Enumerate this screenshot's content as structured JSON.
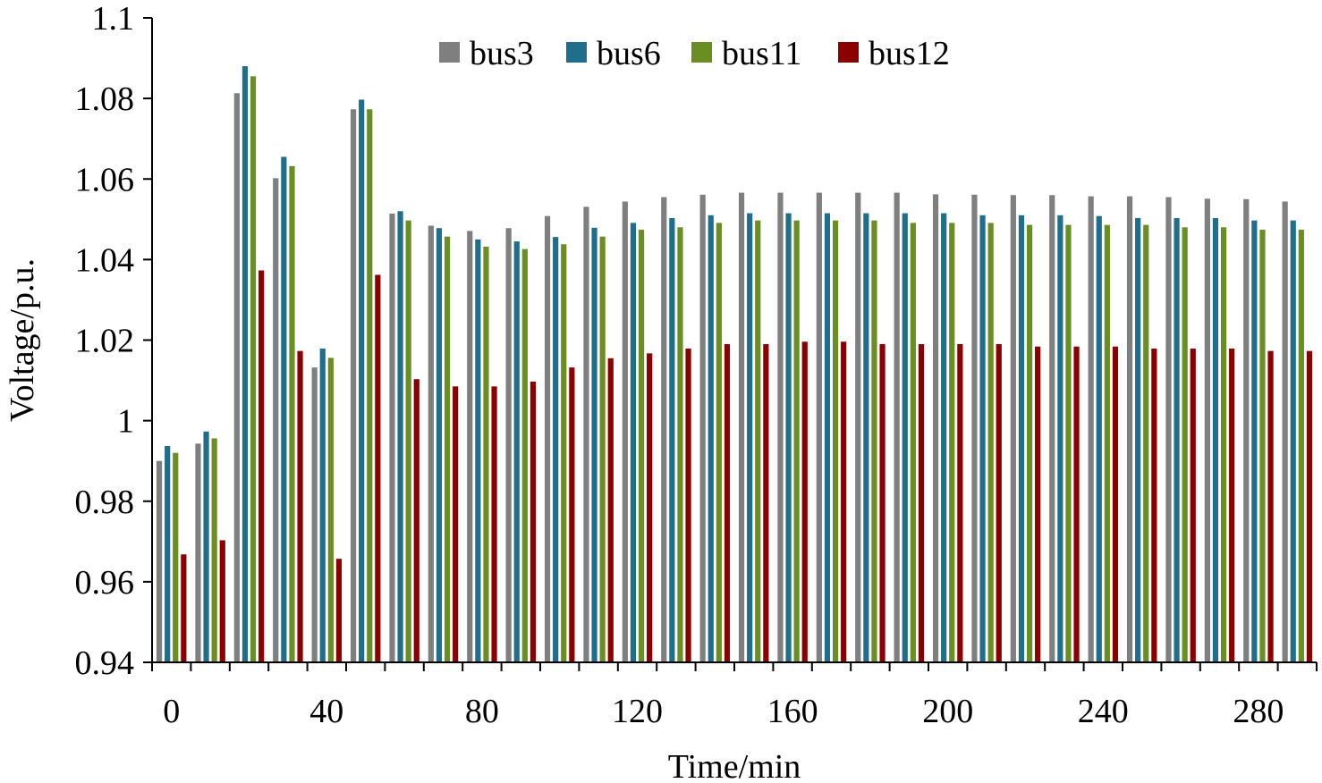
{
  "chart_data": {
    "type": "bar",
    "title": "",
    "xlabel": "Time/min",
    "ylabel": "Voltage/p.u.",
    "ylim": [
      0.94,
      1.1
    ],
    "y_ticks": [
      "0.94",
      "0.96",
      "0.98",
      "1",
      "1.02",
      "1.04",
      "1.06",
      "1.08",
      "1.1"
    ],
    "x_tick_labels": [
      "0",
      "40",
      "80",
      "120",
      "160",
      "200",
      "240",
      "280"
    ],
    "legend_position": "top-center",
    "grid": false,
    "categories": [
      0,
      10,
      20,
      30,
      40,
      50,
      60,
      70,
      80,
      90,
      100,
      110,
      120,
      130,
      140,
      150,
      160,
      170,
      180,
      190,
      200,
      210,
      220,
      230,
      240,
      250,
      260,
      270,
      280,
      290
    ],
    "series": [
      {
        "name": "bus3",
        "color": "#7f7f7f",
        "values": [
          0.99,
          0.9943,
          1.0813,
          1.0602,
          1.0132,
          1.0773,
          1.0514,
          1.0484,
          1.0471,
          1.0478,
          1.0508,
          1.0531,
          1.0544,
          1.0555,
          1.0561,
          1.0566,
          1.0566,
          1.0566,
          1.0566,
          1.0566,
          1.0562,
          1.0561,
          1.056,
          1.056,
          1.0557,
          1.0557,
          1.0555,
          1.0551,
          1.055,
          1.0544
        ]
      },
      {
        "name": "bus6",
        "color": "#1f6e8c",
        "values": [
          0.9937,
          0.9973,
          1.088,
          1.0655,
          1.0179,
          1.0797,
          1.052,
          1.0478,
          1.045,
          1.0445,
          1.0456,
          1.0479,
          1.0491,
          1.0503,
          1.051,
          1.0515,
          1.0515,
          1.0515,
          1.0515,
          1.0515,
          1.0515,
          1.051,
          1.051,
          1.051,
          1.0508,
          1.0503,
          1.0503,
          1.0503,
          1.0497,
          1.0497
        ]
      },
      {
        "name": "bus11",
        "color": "#6b8e23",
        "values": [
          0.992,
          0.9956,
          1.0855,
          1.0632,
          1.0156,
          1.0773,
          1.0497,
          1.0457,
          1.0432,
          1.0426,
          1.0438,
          1.0457,
          1.0474,
          1.048,
          1.0491,
          1.0497,
          1.0497,
          1.0497,
          1.0497,
          1.0491,
          1.0491,
          1.0491,
          1.0486,
          1.0486,
          1.0486,
          1.0486,
          1.048,
          1.048,
          1.0474,
          1.0474
        ]
      },
      {
        "name": "bus12",
        "color": "#8b0000",
        "values": [
          0.9668,
          0.9703,
          1.0373,
          1.0173,
          0.9657,
          1.0362,
          1.0103,
          1.0085,
          1.0085,
          1.0097,
          1.0132,
          1.0155,
          1.0167,
          1.0179,
          1.019,
          1.019,
          1.0196,
          1.0196,
          1.019,
          1.019,
          1.019,
          1.019,
          1.0184,
          1.0184,
          1.0184,
          1.0179,
          1.0179,
          1.0179,
          1.0173,
          1.0173
        ]
      }
    ]
  }
}
